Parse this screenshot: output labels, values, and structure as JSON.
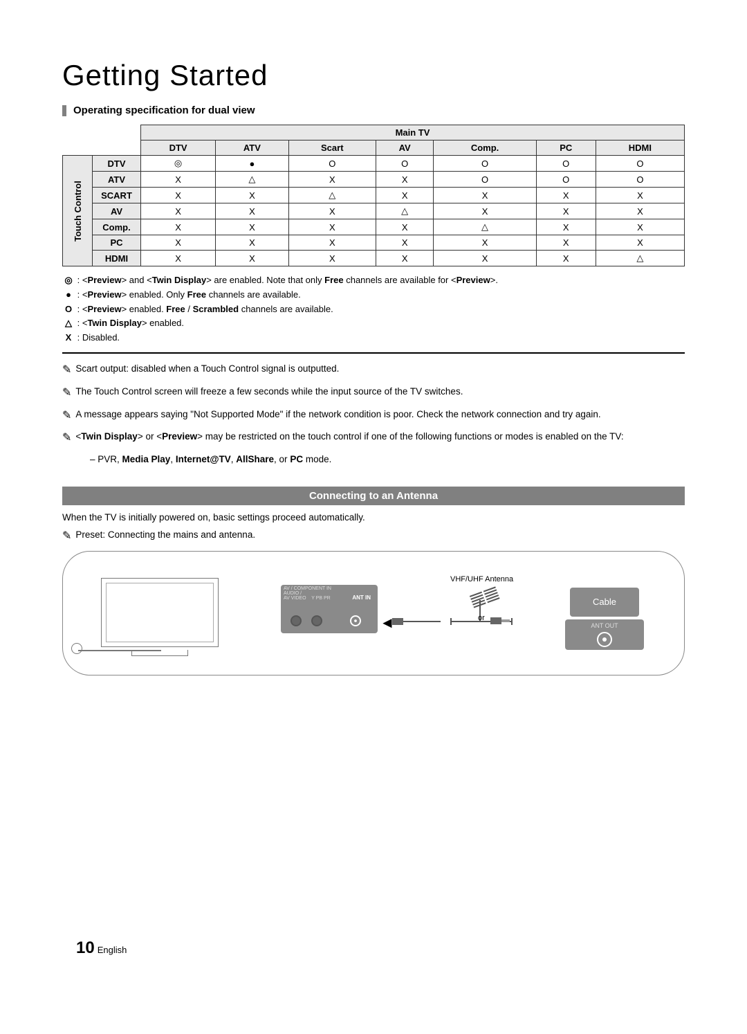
{
  "page": {
    "title": "Getting Started",
    "section_heading": "Operating specification for dual view",
    "page_number": "10",
    "page_lang": "English"
  },
  "table": {
    "group_col_header": "Main TV",
    "side_header": "Touch Control",
    "cols": [
      "DTV",
      "ATV",
      "Scart",
      "AV",
      "Comp.",
      "PC",
      "HDMI"
    ],
    "rows": [
      "DTV",
      "ATV",
      "SCART",
      "AV",
      "Comp.",
      "PC",
      "HDMI"
    ],
    "cells": [
      [
        "◎",
        "●",
        "O",
        "O",
        "O",
        "O",
        "O"
      ],
      [
        "X",
        "△",
        "X",
        "X",
        "O",
        "O",
        "O"
      ],
      [
        "X",
        "X",
        "△",
        "X",
        "X",
        "X",
        "X"
      ],
      [
        "X",
        "X",
        "X",
        "△",
        "X",
        "X",
        "X"
      ],
      [
        "X",
        "X",
        "X",
        "X",
        "△",
        "X",
        "X"
      ],
      [
        "X",
        "X",
        "X",
        "X",
        "X",
        "X",
        "X"
      ],
      [
        "X",
        "X",
        "X",
        "X",
        "X",
        "X",
        "△"
      ]
    ],
    "header_bg": "#e8e8e8",
    "border_color": "#333333"
  },
  "legend": {
    "items": [
      {
        "sym": "◎",
        "text_pre": ": <",
        "b1": "Preview",
        "mid": "> and <",
        "b2": "Twin Display",
        "text_post": "> are enabled. Note that only ",
        "b3": "Free",
        "tail": " channels are available for <",
        "b4": "Preview",
        "end": ">."
      },
      {
        "sym": "●",
        "text": ": <Preview> enabled. Only Free channels are available.",
        "bold_words": [
          "Preview",
          "Free"
        ]
      },
      {
        "sym": "O",
        "text": ": <Preview> enabled. Free / Scrambled channels are available.",
        "bold_words": [
          "Preview",
          "Free",
          "Scrambled"
        ]
      },
      {
        "sym": "△",
        "text": ": <Twin Display> enabled.",
        "bold_words": [
          "Twin Display"
        ]
      },
      {
        "sym": "X",
        "text": ": Disabled."
      }
    ]
  },
  "notes": {
    "icon": "✎",
    "items": [
      "Scart output: disabled when a Touch Control signal is outputted.",
      "The Touch Control screen will freeze a few seconds while the input source of the TV switches.",
      "A message appears saying \"Not Supported Mode\" if the network condition is poor. Check the network connection and try again.",
      "<Twin Display> or <Preview> may be restricted on the touch control if one of the following functions or modes is enabled on the TV:"
    ],
    "sub_item_prefix": "– PVR, ",
    "sub_item_bold": "Media Play",
    "sub_item_mid1": ", ",
    "sub_item_bold2": "Internet@TV",
    "sub_item_mid2": ", ",
    "sub_item_bold3": "AllShare",
    "sub_item_mid3": ", or ",
    "sub_item_bold4": "PC",
    "sub_item_tail": " mode."
  },
  "antenna_section": {
    "banner": "Connecting to an Antenna",
    "intro": "When the TV is initially powered on, basic settings proceed automatically.",
    "preset_note": "Preset: Connecting the mains and antenna.",
    "diagram": {
      "panel_label": "AV / COMPONENT IN\nAUDIO /\nAV VIDEO    Y PB PR",
      "ant_in": "ANT IN",
      "antenna_label": "VHF/UHF Antenna",
      "or_label": "or",
      "cable_label": "Cable",
      "ant_out": "ANT OUT"
    },
    "colors": {
      "banner_bg": "#808080",
      "banner_fg": "#ffffff",
      "panel_bg": "#8a8a8a",
      "diagram_border": "#888888"
    }
  }
}
